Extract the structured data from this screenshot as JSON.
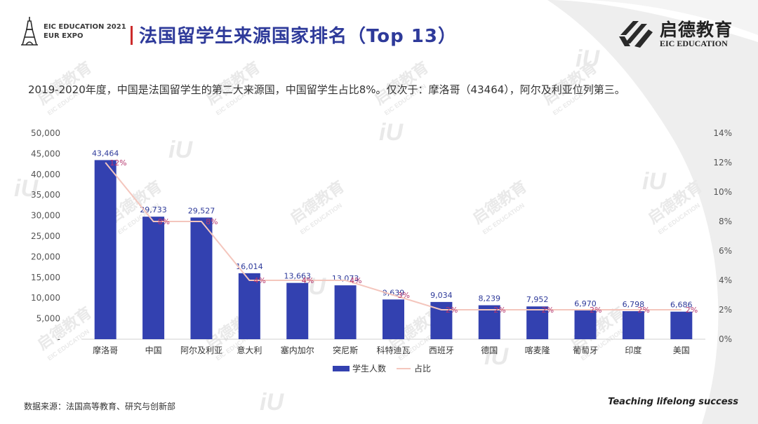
{
  "header": {
    "event_line1": "EIC EDUCATION 2021",
    "event_line2": "EUR EXPO",
    "title": "法国留学生来源国家排名（Top 13）",
    "brand_cn": "启德教育",
    "brand_en": "EIC EDUCATION"
  },
  "subtitle": "2019-2020年度，中国是法国留学生的第二大来源国，中国留学生占比8%。仅次于：摩洛哥（43464），阿尔及利亚位列第三。",
  "footer": {
    "source": "数据来源：法国高等教育、研究与创新部",
    "slogan": "Teaching lifelong success"
  },
  "colors": {
    "title": "#2e3a9a",
    "accent_bar": "#cc2b2b",
    "bar": "#3341b0",
    "line": "#f4c6bd",
    "pct_label": "#b5366d",
    "value_label": "#2e3a9a"
  },
  "icons": [
    "eiffel-tower-icon",
    "eic-brand-mark-icon"
  ],
  "chart_data": {
    "type": "bar",
    "categories": [
      "摩洛哥",
      "中国",
      "阿尔及利亚",
      "意大利",
      "塞内加尔",
      "突尼斯",
      "科特迪瓦",
      "西班牙",
      "德国",
      "喀麦隆",
      "葡萄牙",
      "印度",
      "美国"
    ],
    "series": [
      {
        "name": "学生人数",
        "type": "bar",
        "axis": "left",
        "values": [
          43464,
          29733,
          29527,
          16014,
          13663,
          13073,
          9639,
          9034,
          8239,
          7952,
          6970,
          6798,
          6686
        ],
        "labels": [
          "43,464",
          "29,733",
          "29,527",
          "16,014",
          "13,663",
          "13,073",
          "9,639",
          "9,034",
          "8,239",
          "7,952",
          "6,970",
          "6,798",
          "6,686"
        ]
      },
      {
        "name": "占比",
        "type": "line",
        "axis": "right",
        "values": [
          12,
          8,
          8,
          4,
          4,
          4,
          3,
          2,
          2,
          2,
          2,
          2,
          2
        ],
        "labels": [
          "12%",
          "8%",
          "8%",
          "4%",
          "4%",
          "4%",
          "3%",
          "2%",
          "2%",
          "2%",
          "2%",
          "2%",
          "2%"
        ]
      }
    ],
    "y_left": {
      "range": [
        0,
        50000
      ],
      "ticks": [
        "-",
        "5,000",
        "10,000",
        "15,000",
        "20,000",
        "25,000",
        "30,000",
        "35,000",
        "40,000",
        "45,000",
        "50,000"
      ]
    },
    "y_right": {
      "range": [
        0,
        14
      ],
      "ticks": [
        "0%",
        "2%",
        "4%",
        "6%",
        "8%",
        "10%",
        "12%",
        "14%"
      ]
    },
    "grid": false,
    "legend": "bottom"
  }
}
